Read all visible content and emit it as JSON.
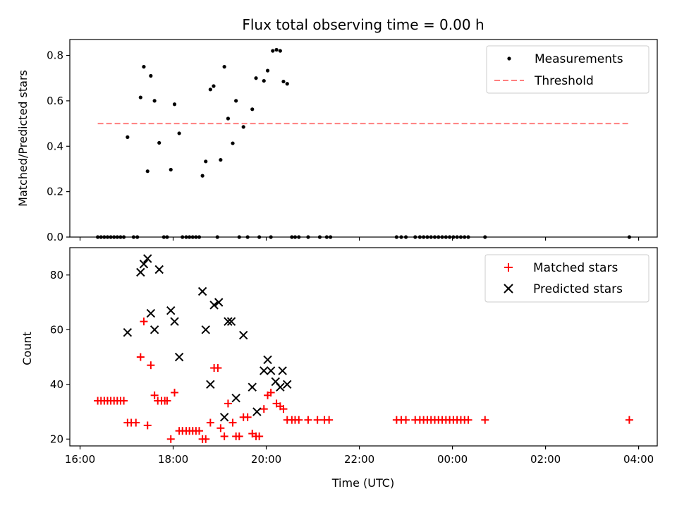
{
  "chart_data": {
    "title": "Flux total observing time = 0.00 h",
    "colors": {
      "measurement": "#000000",
      "threshold": "#ff7f7f",
      "matched": "#ff0000",
      "predicted": "#000000"
    },
    "xaxis": {
      "xlabel": "Time (UTC)",
      "xlim_hours": [
        15.78,
        28.4
      ],
      "ticks": [
        {
          "h": 16,
          "label": "16:00"
        },
        {
          "h": 18,
          "label": "18:00"
        },
        {
          "h": 20,
          "label": "20:00"
        },
        {
          "h": 22,
          "label": "22:00"
        },
        {
          "h": 24,
          "label": "00:00"
        },
        {
          "h": 26,
          "label": "02:00"
        },
        {
          "h": 28,
          "label": "04:00"
        }
      ]
    },
    "top": {
      "type": "scatter",
      "ylabel": "Matched/Predicted stars",
      "ylim": [
        0,
        0.87
      ],
      "yticks": [
        {
          "v": 0,
          "label": "0.0"
        },
        {
          "v": 0.2,
          "label": "0.2"
        },
        {
          "v": 0.4,
          "label": "0.4"
        },
        {
          "v": 0.6,
          "label": "0.6"
        },
        {
          "v": 0.8,
          "label": "0.8"
        }
      ],
      "legend": {
        "position": "top-right",
        "measurements_label": "Measurements",
        "threshold_label": "Threshold"
      },
      "threshold": {
        "value": 0.5,
        "x_start": 16.38,
        "x_end": 27.8
      },
      "points": [
        [
          16.38,
          0
        ],
        [
          16.45,
          0
        ],
        [
          16.52,
          0
        ],
        [
          16.59,
          0
        ],
        [
          16.66,
          0
        ],
        [
          16.73,
          0
        ],
        [
          16.8,
          0
        ],
        [
          16.87,
          0
        ],
        [
          16.94,
          0
        ],
        [
          17.02,
          0.44
        ],
        [
          17.15,
          0
        ],
        [
          17.23,
          0
        ],
        [
          17.3,
          0.615
        ],
        [
          17.37,
          0.75
        ],
        [
          17.45,
          0.29
        ],
        [
          17.52,
          0.71
        ],
        [
          17.6,
          0.6
        ],
        [
          17.7,
          0.415
        ],
        [
          17.8,
          0
        ],
        [
          17.87,
          0
        ],
        [
          17.95,
          0.297
        ],
        [
          18.03,
          0.585
        ],
        [
          18.13,
          0.457
        ],
        [
          18.2,
          0
        ],
        [
          18.28,
          0
        ],
        [
          18.35,
          0
        ],
        [
          18.42,
          0
        ],
        [
          18.49,
          0
        ],
        [
          18.56,
          0
        ],
        [
          18.63,
          0.27
        ],
        [
          18.7,
          0.333
        ],
        [
          18.8,
          0.65
        ],
        [
          18.87,
          0.665
        ],
        [
          18.95,
          0
        ],
        [
          19.02,
          0.34
        ],
        [
          19.1,
          0.75
        ],
        [
          19.18,
          0.522
        ],
        [
          19.28,
          0.413
        ],
        [
          19.35,
          0.6
        ],
        [
          19.42,
          0
        ],
        [
          19.51,
          0.485
        ],
        [
          19.6,
          0
        ],
        [
          19.7,
          0.563
        ],
        [
          19.78,
          0.7
        ],
        [
          19.85,
          0
        ],
        [
          19.95,
          0.688
        ],
        [
          20.03,
          0.733
        ],
        [
          20.1,
          0
        ],
        [
          20.14,
          0.82
        ],
        [
          20.22,
          0.825
        ],
        [
          20.3,
          0.82
        ],
        [
          20.37,
          0.685
        ],
        [
          20.45,
          0.675
        ],
        [
          20.55,
          0
        ],
        [
          20.62,
          0
        ],
        [
          20.7,
          0
        ],
        [
          20.9,
          0
        ],
        [
          21.15,
          0
        ],
        [
          21.3,
          0
        ],
        [
          21.38,
          0
        ],
        [
          22.8,
          0
        ],
        [
          22.9,
          0
        ],
        [
          23.0,
          0
        ],
        [
          23.2,
          0
        ],
        [
          23.3,
          0
        ],
        [
          23.38,
          0
        ],
        [
          23.46,
          0
        ],
        [
          23.54,
          0
        ],
        [
          23.62,
          0
        ],
        [
          23.7,
          0
        ],
        [
          23.78,
          0
        ],
        [
          23.86,
          0
        ],
        [
          23.94,
          0
        ],
        [
          24.02,
          0
        ],
        [
          24.1,
          0
        ],
        [
          24.18,
          0
        ],
        [
          24.26,
          0
        ],
        [
          24.34,
          0
        ],
        [
          24.7,
          0
        ],
        [
          27.8,
          0
        ]
      ]
    },
    "bottom": {
      "type": "scatter",
      "ylabel": "Count",
      "ylim": [
        17.5,
        90
      ],
      "yticks": [
        {
          "v": 20,
          "label": "20"
        },
        {
          "v": 40,
          "label": "40"
        },
        {
          "v": 60,
          "label": "60"
        },
        {
          "v": 80,
          "label": "80"
        }
      ],
      "legend": {
        "position": "top-right",
        "matched_label": "Matched stars",
        "predicted_label": "Predicted stars"
      },
      "matched": [
        [
          16.38,
          34
        ],
        [
          16.45,
          34
        ],
        [
          16.52,
          34
        ],
        [
          16.59,
          34
        ],
        [
          16.66,
          34
        ],
        [
          16.73,
          34
        ],
        [
          16.8,
          34
        ],
        [
          16.87,
          34
        ],
        [
          16.94,
          34
        ],
        [
          17.02,
          26
        ],
        [
          17.1,
          26
        ],
        [
          17.2,
          26
        ],
        [
          17.3,
          50
        ],
        [
          17.37,
          63
        ],
        [
          17.45,
          25
        ],
        [
          17.52,
          47
        ],
        [
          17.6,
          36
        ],
        [
          17.67,
          34
        ],
        [
          17.75,
          34
        ],
        [
          17.82,
          34
        ],
        [
          17.87,
          34
        ],
        [
          17.95,
          20
        ],
        [
          18.03,
          37
        ],
        [
          18.13,
          23
        ],
        [
          18.2,
          23
        ],
        [
          18.28,
          23
        ],
        [
          18.35,
          23
        ],
        [
          18.42,
          23
        ],
        [
          18.49,
          23
        ],
        [
          18.56,
          23
        ],
        [
          18.63,
          20
        ],
        [
          18.7,
          20
        ],
        [
          18.8,
          26
        ],
        [
          18.88,
          46
        ],
        [
          18.96,
          46
        ],
        [
          19.02,
          24
        ],
        [
          19.1,
          21
        ],
        [
          19.18,
          33
        ],
        [
          19.28,
          26
        ],
        [
          19.35,
          21
        ],
        [
          19.42,
          21
        ],
        [
          19.51,
          28
        ],
        [
          19.6,
          28
        ],
        [
          19.7,
          22
        ],
        [
          19.78,
          21
        ],
        [
          19.85,
          21
        ],
        [
          19.95,
          31
        ],
        [
          20.03,
          36
        ],
        [
          20.1,
          37
        ],
        [
          20.22,
          33
        ],
        [
          20.3,
          32
        ],
        [
          20.37,
          31
        ],
        [
          20.45,
          27
        ],
        [
          20.55,
          27
        ],
        [
          20.62,
          27
        ],
        [
          20.7,
          27
        ],
        [
          20.9,
          27
        ],
        [
          21.1,
          27
        ],
        [
          21.25,
          27
        ],
        [
          21.35,
          27
        ],
        [
          22.8,
          27
        ],
        [
          22.9,
          27
        ],
        [
          23.0,
          27
        ],
        [
          23.2,
          27
        ],
        [
          23.3,
          27
        ],
        [
          23.38,
          27
        ],
        [
          23.46,
          27
        ],
        [
          23.54,
          27
        ],
        [
          23.62,
          27
        ],
        [
          23.7,
          27
        ],
        [
          23.78,
          27
        ],
        [
          23.86,
          27
        ],
        [
          23.94,
          27
        ],
        [
          24.02,
          27
        ],
        [
          24.1,
          27
        ],
        [
          24.18,
          27
        ],
        [
          24.26,
          27
        ],
        [
          24.34,
          27
        ],
        [
          24.7,
          27
        ],
        [
          27.8,
          27
        ]
      ],
      "predicted": [
        [
          17.02,
          59
        ],
        [
          17.3,
          81
        ],
        [
          17.37,
          84
        ],
        [
          17.45,
          86
        ],
        [
          17.52,
          66
        ],
        [
          17.6,
          60
        ],
        [
          17.7,
          82
        ],
        [
          17.95,
          67
        ],
        [
          18.03,
          63
        ],
        [
          18.13,
          50
        ],
        [
          18.63,
          74
        ],
        [
          18.7,
          60
        ],
        [
          18.8,
          40
        ],
        [
          18.88,
          69
        ],
        [
          18.98,
          70
        ],
        [
          19.1,
          28
        ],
        [
          19.18,
          63
        ],
        [
          19.25,
          63
        ],
        [
          19.35,
          35
        ],
        [
          19.51,
          58
        ],
        [
          19.7,
          39
        ],
        [
          19.8,
          30
        ],
        [
          19.95,
          45
        ],
        [
          20.03,
          49
        ],
        [
          20.1,
          45
        ],
        [
          20.2,
          41
        ],
        [
          20.3,
          39
        ],
        [
          20.35,
          45
        ],
        [
          20.45,
          40
        ]
      ]
    }
  }
}
